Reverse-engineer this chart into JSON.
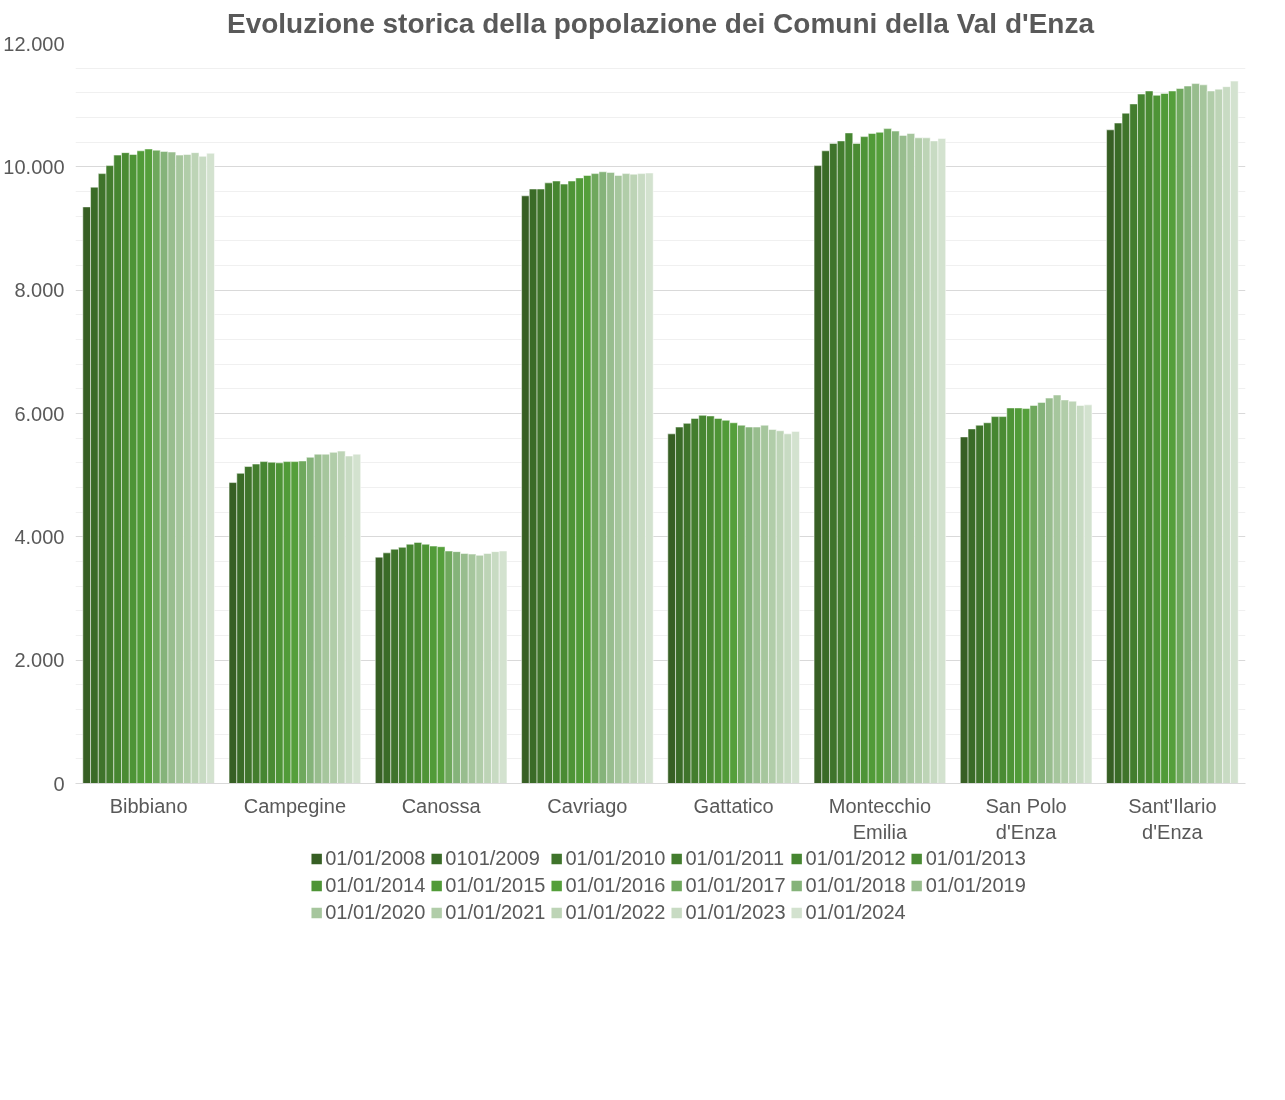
{
  "chart_data": {
    "type": "bar",
    "title": "Evoluzione storica della popolazione dei Comuni della Val d'Enza",
    "categories": [
      "Bibbiano",
      "Campegine",
      "Canossa",
      "Cavriago",
      "Gattatico",
      "Montecchio Emilia",
      "San Polo d'Enza",
      "Sant'Ilario d'Enza"
    ],
    "ylim": [
      0,
      12000
    ],
    "yticks": [
      {
        "value": 0,
        "label": "0"
      },
      {
        "value": 2000,
        "label": "2.000"
      },
      {
        "value": 4000,
        "label": "4.000"
      },
      {
        "value": 6000,
        "label": "6.000"
      },
      {
        "value": 8000,
        "label": "8.000"
      },
      {
        "value": 10000,
        "label": "10.000"
      },
      {
        "value": 12000,
        "label": "12.000"
      }
    ],
    "grid": "y",
    "legend": "bottom",
    "series": [
      {
        "name": "01/01/2008",
        "color": "#375f24",
        "values": [
          9350,
          4880,
          3670,
          9530,
          5670,
          10020,
          5620,
          10600
        ]
      },
      {
        "name": "0101/2009",
        "color": "#3a6b27",
        "values": [
          9670,
          5030,
          3740,
          9640,
          5780,
          10260,
          5750,
          10710
        ]
      },
      {
        "name": "01/01/2010",
        "color": "#3f742b",
        "values": [
          9890,
          5140,
          3800,
          9640,
          5840,
          10380,
          5810,
          10870
        ]
      },
      {
        "name": "01/01/2011",
        "color": "#437d2e",
        "values": [
          10020,
          5180,
          3830,
          9740,
          5920,
          10420,
          5850,
          11020
        ]
      },
      {
        "name": "01/01/2012",
        "color": "#468631",
        "values": [
          10190,
          5220,
          3880,
          9770,
          5970,
          10550,
          5950,
          11180
        ]
      },
      {
        "name": "01/01/2013",
        "color": "#4a8b33",
        "values": [
          10230,
          5210,
          3910,
          9720,
          5960,
          10380,
          5950,
          11230
        ]
      },
      {
        "name": "01/01/2014",
        "color": "#4e9436",
        "values": [
          10200,
          5200,
          3880,
          9770,
          5920,
          10490,
          6090,
          11160
        ]
      },
      {
        "name": "01/01/2015",
        "color": "#519b38",
        "values": [
          10260,
          5220,
          3850,
          9820,
          5890,
          10540,
          6090,
          11190
        ]
      },
      {
        "name": "01/01/2016",
        "color": "#559f3b",
        "values": [
          10290,
          5220,
          3840,
          9860,
          5850,
          10560,
          6080,
          11230
        ]
      },
      {
        "name": "01/01/2017",
        "color": "#6fa85d",
        "values": [
          10270,
          5230,
          3770,
          9890,
          5810,
          10620,
          6130,
          11270
        ]
      },
      {
        "name": "01/01/2018",
        "color": "#85b37a",
        "values": [
          10250,
          5290,
          3760,
          9920,
          5780,
          10580,
          6180,
          11310
        ]
      },
      {
        "name": "01/01/2019",
        "color": "#98bd8e",
        "values": [
          10240,
          5340,
          3730,
          9910,
          5780,
          10510,
          6250,
          11350
        ]
      },
      {
        "name": "01/01/2020",
        "color": "#a6c69d",
        "values": [
          10190,
          5340,
          3720,
          9860,
          5810,
          10540,
          6300,
          11330
        ]
      },
      {
        "name": "01/01/2021",
        "color": "#b1cda9",
        "values": [
          10200,
          5370,
          3700,
          9890,
          5740,
          10470,
          6220,
          11230
        ]
      },
      {
        "name": "01/01/2022",
        "color": "#bdd4b6",
        "values": [
          10230,
          5390,
          3730,
          9880,
          5720,
          10470,
          6200,
          11260
        ]
      },
      {
        "name": "01/01/2023",
        "color": "#c8dbc3",
        "values": [
          10170,
          5310,
          3760,
          9890,
          5670,
          10420,
          6130,
          11300
        ]
      },
      {
        "name": "01/01/2024",
        "color": "#d3e2cf",
        "values": [
          10220,
          5340,
          3770,
          9900,
          5710,
          10460,
          6140,
          11390
        ]
      }
    ]
  }
}
